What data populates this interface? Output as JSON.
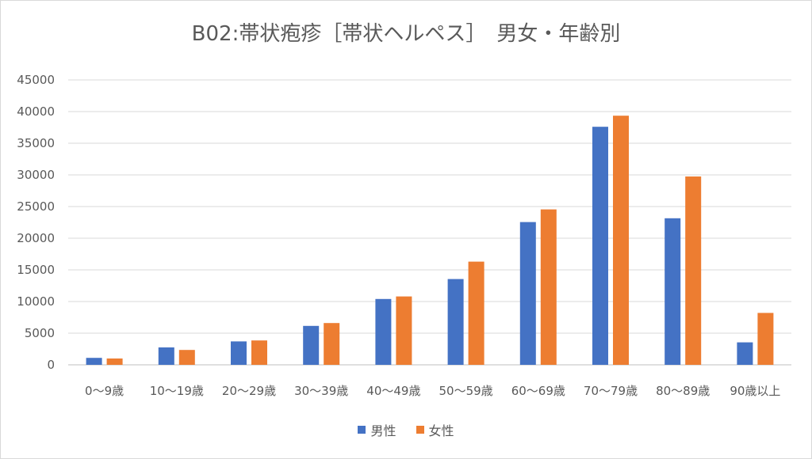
{
  "chart_data": {
    "type": "bar",
    "title": "B02:帯状疱疹［帯状ヘルペス］　男女・年齢別",
    "categories": [
      "0～9歳",
      "10～19歳",
      "20～29歳",
      "30～39歳",
      "40～49歳",
      "50～59歳",
      "60～69歳",
      "70～79歳",
      "80～89歳",
      "90歳以上"
    ],
    "series": [
      {
        "name": "男性",
        "color": "#4472C4",
        "values": [
          1100,
          2750,
          3700,
          6150,
          10400,
          13550,
          22550,
          37600,
          23150,
          3550
        ]
      },
      {
        "name": "女性",
        "color": "#ED7D31",
        "values": [
          1000,
          2350,
          3850,
          6600,
          10800,
          16300,
          24550,
          39350,
          29750,
          8200
        ]
      }
    ],
    "ylim": [
      0,
      45000
    ],
    "yticks": [
      "0",
      "5000",
      "10000",
      "15000",
      "20000",
      "25000",
      "30000",
      "35000",
      "40000",
      "45000"
    ],
    "grid": true,
    "legend": "bottom"
  }
}
